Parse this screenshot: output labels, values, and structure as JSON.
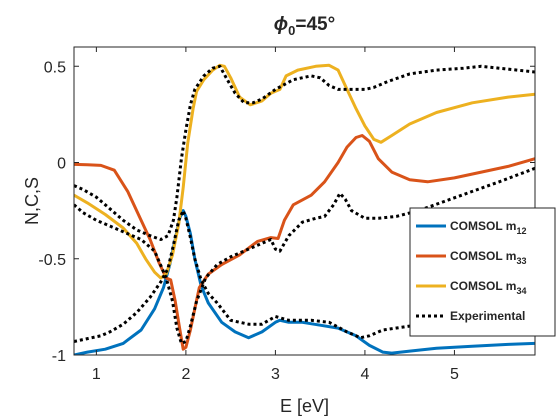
{
  "chart_data": {
    "type": "line",
    "title": "ϕ",
    "title_sub": "0",
    "title_tail": "=45°",
    "xlabel": "E [eV]",
    "ylabel": "N,C,S",
    "xlim": [
      0.75,
      5.9
    ],
    "ylim": [
      -1.0,
      0.6
    ],
    "xticks": [
      1,
      2,
      3,
      4,
      5
    ],
    "xtick_labels": [
      "1",
      "2",
      "3",
      "4",
      "5"
    ],
    "yticks": [
      -1,
      -0.5,
      0,
      0.5
    ],
    "ytick_labels": [
      "-1",
      "-0.5",
      "0",
      "0.5"
    ],
    "grid": false,
    "legend_position": "right",
    "series": [
      {
        "name": "COMSOL m",
        "name_sub": "12",
        "color": "#0072BD",
        "style": "solid",
        "points": [
          [
            0.75,
            -1.0
          ],
          [
            0.9,
            -0.985
          ],
          [
            1.1,
            -0.97
          ],
          [
            1.3,
            -0.94
          ],
          [
            1.5,
            -0.87
          ],
          [
            1.65,
            -0.76
          ],
          [
            1.75,
            -0.65
          ],
          [
            1.82,
            -0.53
          ],
          [
            1.88,
            -0.4
          ],
          [
            1.93,
            -0.29
          ],
          [
            1.97,
            -0.25
          ],
          [
            2.0,
            -0.28
          ],
          [
            2.05,
            -0.37
          ],
          [
            2.1,
            -0.5
          ],
          [
            2.17,
            -0.64
          ],
          [
            2.25,
            -0.73
          ],
          [
            2.4,
            -0.83
          ],
          [
            2.55,
            -0.88
          ],
          [
            2.7,
            -0.91
          ],
          [
            2.85,
            -0.88
          ],
          [
            3.0,
            -0.83
          ],
          [
            3.05,
            -0.82
          ],
          [
            3.15,
            -0.83
          ],
          [
            3.3,
            -0.83
          ],
          [
            3.5,
            -0.845
          ],
          [
            3.7,
            -0.86
          ],
          [
            3.9,
            -0.9
          ],
          [
            4.05,
            -0.95
          ],
          [
            4.2,
            -0.985
          ],
          [
            4.3,
            -0.99
          ],
          [
            4.5,
            -0.98
          ],
          [
            4.8,
            -0.965
          ],
          [
            5.2,
            -0.955
          ],
          [
            5.6,
            -0.945
          ],
          [
            5.9,
            -0.94
          ]
        ]
      },
      {
        "name": "COMSOL m",
        "name_sub": "33",
        "color": "#D95319",
        "style": "solid",
        "points": [
          [
            0.75,
            -0.01
          ],
          [
            0.9,
            -0.012
          ],
          [
            1.05,
            -0.015
          ],
          [
            1.2,
            -0.04
          ],
          [
            1.35,
            -0.15
          ],
          [
            1.5,
            -0.3
          ],
          [
            1.6,
            -0.4
          ],
          [
            1.7,
            -0.52
          ],
          [
            1.78,
            -0.6
          ],
          [
            1.83,
            -0.61
          ],
          [
            1.88,
            -0.72
          ],
          [
            1.93,
            -0.86
          ],
          [
            1.97,
            -0.97
          ],
          [
            2.0,
            -0.96
          ],
          [
            2.05,
            -0.87
          ],
          [
            2.1,
            -0.76
          ],
          [
            2.15,
            -0.65
          ],
          [
            2.25,
            -0.58
          ],
          [
            2.4,
            -0.53
          ],
          [
            2.6,
            -0.48
          ],
          [
            2.8,
            -0.41
          ],
          [
            2.95,
            -0.39
          ],
          [
            3.03,
            -0.395
          ],
          [
            3.1,
            -0.3
          ],
          [
            3.2,
            -0.22
          ],
          [
            3.4,
            -0.17
          ],
          [
            3.55,
            -0.1
          ],
          [
            3.7,
            0.0
          ],
          [
            3.8,
            0.08
          ],
          [
            3.9,
            0.13
          ],
          [
            3.97,
            0.14
          ],
          [
            4.05,
            0.11
          ],
          [
            4.15,
            0.02
          ],
          [
            4.3,
            -0.05
          ],
          [
            4.5,
            -0.09
          ],
          [
            4.7,
            -0.1
          ],
          [
            5.0,
            -0.08
          ],
          [
            5.3,
            -0.05
          ],
          [
            5.6,
            -0.02
          ],
          [
            5.9,
            0.02
          ]
        ]
      },
      {
        "name": "COMSOL m",
        "name_sub": "34",
        "color": "#EDB120",
        "style": "solid",
        "points": [
          [
            0.75,
            -0.17
          ],
          [
            0.9,
            -0.21
          ],
          [
            1.1,
            -0.27
          ],
          [
            1.3,
            -0.34
          ],
          [
            1.45,
            -0.42
          ],
          [
            1.55,
            -0.5
          ],
          [
            1.65,
            -0.57
          ],
          [
            1.72,
            -0.6
          ],
          [
            1.78,
            -0.58
          ],
          [
            1.85,
            -0.48
          ],
          [
            1.92,
            -0.32
          ],
          [
            1.97,
            -0.13
          ],
          [
            2.02,
            0.1
          ],
          [
            2.08,
            0.28
          ],
          [
            2.12,
            0.37
          ],
          [
            2.2,
            0.43
          ],
          [
            2.3,
            0.48
          ],
          [
            2.38,
            0.505
          ],
          [
            2.43,
            0.5
          ],
          [
            2.5,
            0.44
          ],
          [
            2.6,
            0.34
          ],
          [
            2.72,
            0.3
          ],
          [
            2.85,
            0.32
          ],
          [
            2.95,
            0.36
          ],
          [
            3.05,
            0.38
          ],
          [
            3.12,
            0.45
          ],
          [
            3.25,
            0.48
          ],
          [
            3.45,
            0.5
          ],
          [
            3.6,
            0.505
          ],
          [
            3.7,
            0.48
          ],
          [
            3.8,
            0.38
          ],
          [
            3.9,
            0.28
          ],
          [
            4.0,
            0.19
          ],
          [
            4.1,
            0.12
          ],
          [
            4.18,
            0.105
          ],
          [
            4.3,
            0.14
          ],
          [
            4.5,
            0.2
          ],
          [
            4.8,
            0.26
          ],
          [
            5.2,
            0.31
          ],
          [
            5.6,
            0.34
          ],
          [
            5.9,
            0.355
          ]
        ]
      },
      {
        "name": "Experimental",
        "color": "#000000",
        "style": "dotted",
        "points": [
          [
            0.75,
            -0.12
          ],
          [
            0.85,
            -0.14
          ],
          [
            1.0,
            -0.18
          ],
          [
            1.15,
            -0.24
          ],
          [
            1.3,
            -0.3
          ],
          [
            1.45,
            -0.35
          ],
          [
            1.6,
            -0.38
          ],
          [
            1.72,
            -0.4
          ],
          [
            1.8,
            -0.38
          ],
          [
            1.86,
            -0.3
          ],
          [
            1.9,
            -0.18
          ],
          [
            1.95,
            0.02
          ],
          [
            2.0,
            0.17
          ],
          [
            2.05,
            0.3
          ],
          [
            2.1,
            0.38
          ],
          [
            2.2,
            0.45
          ],
          [
            2.3,
            0.49
          ],
          [
            2.38,
            0.5
          ],
          [
            2.45,
            0.44
          ],
          [
            2.55,
            0.36
          ],
          [
            2.65,
            0.31
          ],
          [
            2.75,
            0.31
          ],
          [
            2.85,
            0.33
          ],
          [
            3.0,
            0.38
          ],
          [
            3.2,
            0.43
          ],
          [
            3.4,
            0.45
          ],
          [
            3.5,
            0.44
          ],
          [
            3.6,
            0.4
          ],
          [
            3.7,
            0.38
          ],
          [
            3.85,
            0.38
          ],
          [
            4.0,
            0.38
          ],
          [
            4.1,
            0.39
          ],
          [
            4.25,
            0.42
          ],
          [
            4.5,
            0.46
          ],
          [
            4.8,
            0.48
          ],
          [
            5.1,
            0.49
          ],
          [
            5.3,
            0.5
          ],
          [
            5.5,
            0.49
          ],
          [
            5.7,
            0.48
          ],
          [
            5.9,
            0.47
          ]
        ]
      },
      {
        "name": "",
        "color": "#000000",
        "style": "dotted",
        "points": [
          [
            0.75,
            -0.22
          ],
          [
            0.85,
            -0.26
          ],
          [
            1.0,
            -0.3
          ],
          [
            1.15,
            -0.33
          ],
          [
            1.3,
            -0.36
          ],
          [
            1.5,
            -0.4
          ],
          [
            1.65,
            -0.46
          ],
          [
            1.78,
            -0.6
          ],
          [
            1.85,
            -0.72
          ],
          [
            1.9,
            -0.86
          ],
          [
            1.95,
            -0.94
          ],
          [
            2.0,
            -0.93
          ],
          [
            2.05,
            -0.85
          ],
          [
            2.12,
            -0.72
          ],
          [
            2.22,
            -0.6
          ],
          [
            2.35,
            -0.53
          ],
          [
            2.5,
            -0.49
          ],
          [
            2.7,
            -0.45
          ],
          [
            2.85,
            -0.42
          ],
          [
            2.95,
            -0.4
          ],
          [
            3.0,
            -0.45
          ],
          [
            3.05,
            -0.46
          ],
          [
            3.15,
            -0.38
          ],
          [
            3.3,
            -0.31
          ],
          [
            3.45,
            -0.29
          ],
          [
            3.55,
            -0.28
          ],
          [
            3.65,
            -0.22
          ],
          [
            3.72,
            -0.16
          ],
          [
            3.78,
            -0.19
          ],
          [
            3.85,
            -0.25
          ],
          [
            4.0,
            -0.29
          ],
          [
            4.15,
            -0.29
          ],
          [
            4.35,
            -0.28
          ],
          [
            4.6,
            -0.25
          ],
          [
            4.9,
            -0.2
          ],
          [
            5.2,
            -0.15
          ],
          [
            5.5,
            -0.1
          ],
          [
            5.9,
            -0.03
          ]
        ]
      },
      {
        "name": "",
        "color": "#000000",
        "style": "dotted",
        "points": [
          [
            0.75,
            -0.93
          ],
          [
            0.85,
            -0.92
          ],
          [
            0.95,
            -0.91
          ],
          [
            1.05,
            -0.9
          ],
          [
            1.15,
            -0.88
          ],
          [
            1.3,
            -0.84
          ],
          [
            1.45,
            -0.78
          ],
          [
            1.6,
            -0.7
          ],
          [
            1.72,
            -0.62
          ],
          [
            1.8,
            -0.55
          ],
          [
            1.86,
            -0.43
          ],
          [
            1.92,
            -0.3
          ],
          [
            1.97,
            -0.25
          ],
          [
            2.0,
            -0.29
          ],
          [
            2.05,
            -0.39
          ],
          [
            2.1,
            -0.5
          ],
          [
            2.17,
            -0.61
          ],
          [
            2.25,
            -0.68
          ],
          [
            2.35,
            -0.73
          ],
          [
            2.5,
            -0.82
          ],
          [
            2.7,
            -0.84
          ],
          [
            2.85,
            -0.84
          ],
          [
            3.0,
            -0.8
          ],
          [
            3.15,
            -0.82
          ],
          [
            3.4,
            -0.82
          ],
          [
            3.6,
            -0.83
          ],
          [
            3.8,
            -0.88
          ],
          [
            3.95,
            -0.91
          ],
          [
            4.05,
            -0.9
          ],
          [
            4.2,
            -0.87
          ],
          [
            4.5,
            -0.85
          ],
          [
            4.8,
            -0.84
          ],
          [
            5.2,
            -0.84
          ],
          [
            5.6,
            -0.86
          ],
          [
            5.9,
            -0.88
          ]
        ]
      }
    ]
  }
}
